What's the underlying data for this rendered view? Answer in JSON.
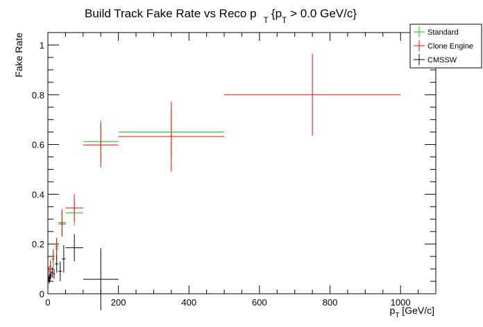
{
  "chart_data": {
    "type": "scatter",
    "title_main": "Build Track Fake Rate vs Reco p",
    "title_sub": "T",
    "title_brace": "{p",
    "title_brace_sub": "T",
    "title_rest": " > 0.0 GeV/c}",
    "xlabel_main": "p",
    "xlabel_sub": "T",
    "xlabel_rest": " [GeV/c]",
    "ylabel": "Fake Rate",
    "xlim": [
      0,
      1100
    ],
    "ylim": [
      0,
      1.05
    ],
    "xticks": [
      0,
      200,
      400,
      600,
      800,
      1000
    ],
    "yticks": [
      0,
      0.2,
      0.4,
      0.6,
      0.8,
      1
    ],
    "ytick_labels": [
      "0",
      "0.2",
      "0.4",
      "0.6",
      "0.8",
      "1"
    ],
    "legend_position": "top-right",
    "series": [
      {
        "name": "Standard",
        "color": "#00cc00",
        "points": [
          {
            "x": 150,
            "xlo": 100,
            "xhi": 200,
            "y": 0.612,
            "yerr": 0.085
          },
          {
            "x": 350,
            "xlo": 200,
            "xhi": 500,
            "y": 0.65,
            "yerr": 0.1
          },
          {
            "x": 75,
            "xlo": 50,
            "xhi": 100,
            "y": 0.325,
            "yerr": 0.05
          },
          {
            "x": 40,
            "xlo": 30,
            "xhi": 50,
            "y": 0.28,
            "yerr": 0.05
          },
          {
            "x": 25,
            "xlo": 20,
            "xhi": 30,
            "y": 0.18,
            "yerr": 0.04
          },
          {
            "x": 15,
            "xlo": 10,
            "xhi": 20,
            "y": 0.14,
            "yerr": 0.04
          },
          {
            "x": 7.5,
            "xlo": 5,
            "xhi": 10,
            "y": 0.1,
            "yerr": 0.03
          }
        ]
      },
      {
        "name": "Clone Engine",
        "color": "#ff0000",
        "points": [
          {
            "x": 750,
            "xlo": 500,
            "xhi": 1000,
            "y": 0.8,
            "yerr": 0.165
          },
          {
            "x": 350,
            "xlo": 200,
            "xhi": 500,
            "y": 0.632,
            "yerr": 0.14
          },
          {
            "x": 150,
            "xlo": 100,
            "xhi": 200,
            "y": 0.598,
            "yerr": 0.09
          },
          {
            "x": 75,
            "xlo": 50,
            "xhi": 100,
            "y": 0.345,
            "yerr": 0.055
          },
          {
            "x": 40,
            "xlo": 30,
            "xhi": 50,
            "y": 0.285,
            "yerr": 0.055
          },
          {
            "x": 25,
            "xlo": 20,
            "xhi": 30,
            "y": 0.19,
            "yerr": 0.035
          },
          {
            "x": 15,
            "xlo": 10,
            "xhi": 20,
            "y": 0.15,
            "yerr": 0.025
          },
          {
            "x": 7.5,
            "xlo": 5,
            "xhi": 10,
            "y": 0.11,
            "yerr": 0.025
          },
          {
            "x": 3.5,
            "xlo": 2,
            "xhi": 5,
            "y": 0.09,
            "yerr": 0.02
          }
        ]
      },
      {
        "name": "CMSSW",
        "color": "#000000",
        "points": [
          {
            "x": 150,
            "xlo": 100,
            "xhi": 200,
            "y": 0.058,
            "yerr": 0.125
          },
          {
            "x": 75,
            "xlo": 50,
            "xhi": 100,
            "y": 0.185,
            "yerr": 0.055
          },
          {
            "x": 45,
            "xlo": 40,
            "xhi": 50,
            "y": 0.14,
            "yerr": 0.055
          },
          {
            "x": 35,
            "xlo": 30,
            "xhi": 40,
            "y": 0.09,
            "yerr": 0.04
          },
          {
            "x": 25,
            "xlo": 20,
            "xhi": 30,
            "y": 0.12,
            "yerr": 0.035
          },
          {
            "x": 17.5,
            "xlo": 15,
            "xhi": 20,
            "y": 0.08,
            "yerr": 0.02
          },
          {
            "x": 12.5,
            "xlo": 10,
            "xhi": 15,
            "y": 0.085,
            "yerr": 0.02
          },
          {
            "x": 8.5,
            "xlo": 7,
            "xhi": 10,
            "y": 0.075,
            "yerr": 0.015
          },
          {
            "x": 6,
            "xlo": 5,
            "xhi": 7,
            "y": 0.065,
            "yerr": 0.015
          },
          {
            "x": 4,
            "xlo": 3,
            "xhi": 5,
            "y": 0.055,
            "yerr": 0.015
          },
          {
            "x": 2.5,
            "xlo": 2,
            "xhi": 3,
            "y": 0.06,
            "yerr": 0.012
          }
        ]
      }
    ]
  }
}
